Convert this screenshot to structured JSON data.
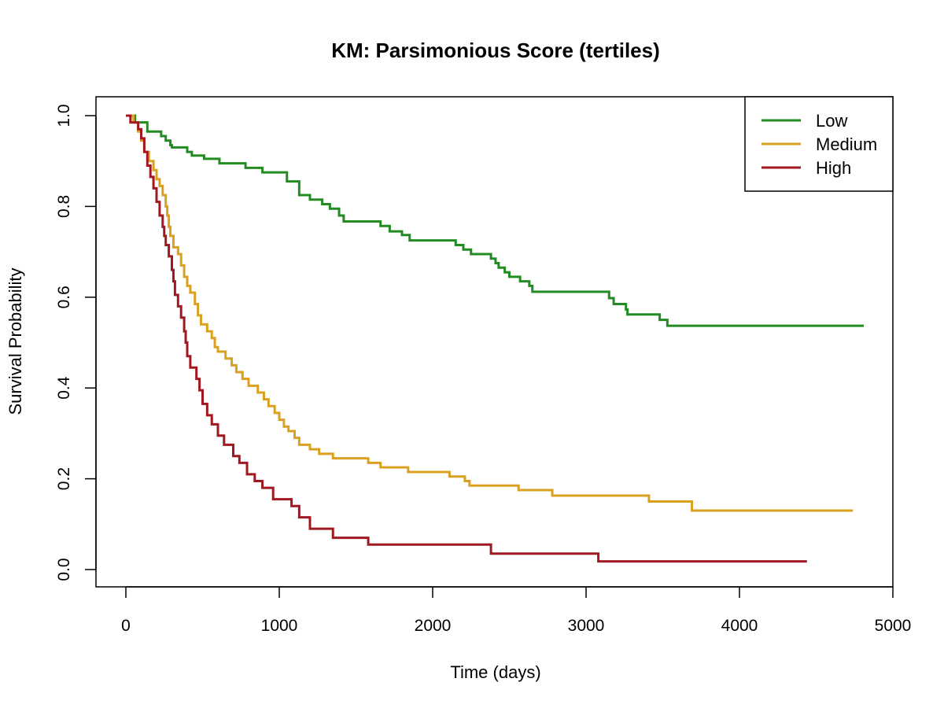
{
  "chart_data": {
    "type": "line",
    "title": "KM: Parsimonious Score (tertiles)",
    "xlabel": "Time (days)",
    "ylabel": "Survival Probability",
    "xlim": [
      0,
      5000
    ],
    "ylim": [
      0,
      1
    ],
    "x_ticks": [
      "0",
      "1000",
      "2000",
      "3000",
      "4000",
      "5000"
    ],
    "y_ticks": [
      "0.0",
      "0.2",
      "0.4",
      "0.6",
      "0.8",
      "1.0"
    ],
    "step": true,
    "grid": false,
    "legend_position": "top-right",
    "series": [
      {
        "name": "Low",
        "color": "#228B22",
        "points": [
          [
            0,
            1.0
          ],
          [
            60,
            0.985
          ],
          [
            140,
            0.965
          ],
          [
            230,
            0.955
          ],
          [
            260,
            0.945
          ],
          [
            290,
            0.935
          ],
          [
            300,
            0.93
          ],
          [
            400,
            0.92
          ],
          [
            430,
            0.912
          ],
          [
            510,
            0.905
          ],
          [
            610,
            0.895
          ],
          [
            780,
            0.885
          ],
          [
            890,
            0.875
          ],
          [
            1050,
            0.855
          ],
          [
            1130,
            0.825
          ],
          [
            1200,
            0.815
          ],
          [
            1280,
            0.805
          ],
          [
            1330,
            0.795
          ],
          [
            1390,
            0.78
          ],
          [
            1420,
            0.767
          ],
          [
            1660,
            0.757
          ],
          [
            1720,
            0.745
          ],
          [
            1800,
            0.737
          ],
          [
            1850,
            0.725
          ],
          [
            2150,
            0.715
          ],
          [
            2200,
            0.705
          ],
          [
            2250,
            0.695
          ],
          [
            2380,
            0.685
          ],
          [
            2410,
            0.675
          ],
          [
            2430,
            0.665
          ],
          [
            2470,
            0.655
          ],
          [
            2500,
            0.645
          ],
          [
            2570,
            0.635
          ],
          [
            2630,
            0.625
          ],
          [
            2650,
            0.612
          ],
          [
            3150,
            0.598
          ],
          [
            3180,
            0.585
          ],
          [
            3260,
            0.573
          ],
          [
            3270,
            0.562
          ],
          [
            3480,
            0.55
          ],
          [
            3530,
            0.537
          ],
          [
            4810,
            0.537
          ]
        ]
      },
      {
        "name": "Medium",
        "color": "#DAA020",
        "points": [
          [
            0,
            1.0
          ],
          [
            50,
            0.985
          ],
          [
            80,
            0.965
          ],
          [
            100,
            0.945
          ],
          [
            120,
            0.92
          ],
          [
            150,
            0.9
          ],
          [
            180,
            0.88
          ],
          [
            200,
            0.86
          ],
          [
            220,
            0.845
          ],
          [
            240,
            0.825
          ],
          [
            260,
            0.8
          ],
          [
            270,
            0.78
          ],
          [
            280,
            0.755
          ],
          [
            290,
            0.735
          ],
          [
            310,
            0.71
          ],
          [
            340,
            0.695
          ],
          [
            360,
            0.67
          ],
          [
            380,
            0.645
          ],
          [
            400,
            0.625
          ],
          [
            420,
            0.61
          ],
          [
            450,
            0.585
          ],
          [
            470,
            0.56
          ],
          [
            490,
            0.54
          ],
          [
            530,
            0.525
          ],
          [
            560,
            0.51
          ],
          [
            580,
            0.49
          ],
          [
            600,
            0.48
          ],
          [
            650,
            0.465
          ],
          [
            690,
            0.45
          ],
          [
            720,
            0.435
          ],
          [
            760,
            0.42
          ],
          [
            800,
            0.405
          ],
          [
            860,
            0.39
          ],
          [
            900,
            0.375
          ],
          [
            930,
            0.36
          ],
          [
            970,
            0.345
          ],
          [
            1000,
            0.33
          ],
          [
            1030,
            0.315
          ],
          [
            1060,
            0.305
          ],
          [
            1100,
            0.29
          ],
          [
            1130,
            0.275
          ],
          [
            1200,
            0.265
          ],
          [
            1260,
            0.255
          ],
          [
            1350,
            0.245
          ],
          [
            1580,
            0.235
          ],
          [
            1660,
            0.225
          ],
          [
            1840,
            0.215
          ],
          [
            2110,
            0.205
          ],
          [
            2210,
            0.195
          ],
          [
            2240,
            0.185
          ],
          [
            2560,
            0.175
          ],
          [
            2780,
            0.163
          ],
          [
            3410,
            0.15
          ],
          [
            3690,
            0.13
          ],
          [
            4740,
            0.13
          ]
        ]
      },
      {
        "name": "High",
        "color": "#A01820",
        "points": [
          [
            0,
            1.0
          ],
          [
            30,
            0.985
          ],
          [
            80,
            0.97
          ],
          [
            100,
            0.95
          ],
          [
            120,
            0.92
          ],
          [
            140,
            0.89
          ],
          [
            160,
            0.865
          ],
          [
            180,
            0.84
          ],
          [
            200,
            0.81
          ],
          [
            220,
            0.78
          ],
          [
            240,
            0.755
          ],
          [
            250,
            0.735
          ],
          [
            260,
            0.715
          ],
          [
            280,
            0.69
          ],
          [
            300,
            0.66
          ],
          [
            310,
            0.635
          ],
          [
            320,
            0.605
          ],
          [
            340,
            0.58
          ],
          [
            360,
            0.555
          ],
          [
            380,
            0.525
          ],
          [
            390,
            0.5
          ],
          [
            400,
            0.47
          ],
          [
            420,
            0.445
          ],
          [
            460,
            0.42
          ],
          [
            480,
            0.395
          ],
          [
            500,
            0.365
          ],
          [
            530,
            0.34
          ],
          [
            560,
            0.32
          ],
          [
            600,
            0.295
          ],
          [
            640,
            0.275
          ],
          [
            700,
            0.25
          ],
          [
            740,
            0.235
          ],
          [
            790,
            0.21
          ],
          [
            840,
            0.195
          ],
          [
            890,
            0.18
          ],
          [
            960,
            0.155
          ],
          [
            1080,
            0.14
          ],
          [
            1130,
            0.115
          ],
          [
            1200,
            0.09
          ],
          [
            1350,
            0.07
          ],
          [
            1580,
            0.055
          ],
          [
            2380,
            0.035
          ],
          [
            3080,
            0.018
          ],
          [
            4440,
            0.018
          ]
        ]
      }
    ]
  }
}
